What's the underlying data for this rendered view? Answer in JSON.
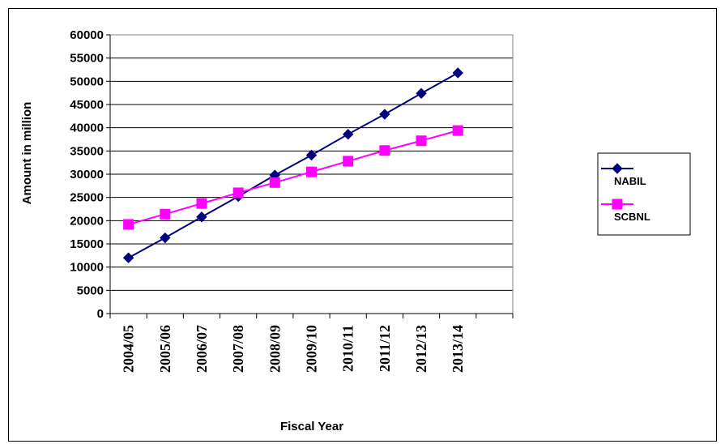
{
  "chart_data": {
    "type": "line",
    "xlabel": "Fiscal Year",
    "ylabel": "Amount in million",
    "ylim": [
      0,
      60000
    ],
    "ytick_step": 5000,
    "yticks": [
      "0",
      "5000",
      "10000",
      "15000",
      "20000",
      "25000",
      "30000",
      "35000",
      "40000",
      "45000",
      "50000",
      "55000",
      "60000"
    ],
    "categories": [
      "2004/05",
      "2005/06",
      "2006/07",
      "2007/08",
      "2008/09",
      "2009/10",
      "2010/11",
      "2011/12",
      "2012/13",
      "2013/14"
    ],
    "category_slots": 11,
    "grid": true,
    "legend_position": "right",
    "series": [
      {
        "name": "NABIL",
        "color": "#00007f",
        "marker": "diamond",
        "values": [
          12000,
          16300,
          20800,
          25200,
          29800,
          34100,
          38600,
          42900,
          47400,
          51800
        ]
      },
      {
        "name": "SCBNL",
        "color": "#ff00ff",
        "marker": "square",
        "values": [
          19200,
          21400,
          23700,
          26000,
          28200,
          30500,
          32800,
          35100,
          37200,
          39400
        ]
      }
    ]
  }
}
